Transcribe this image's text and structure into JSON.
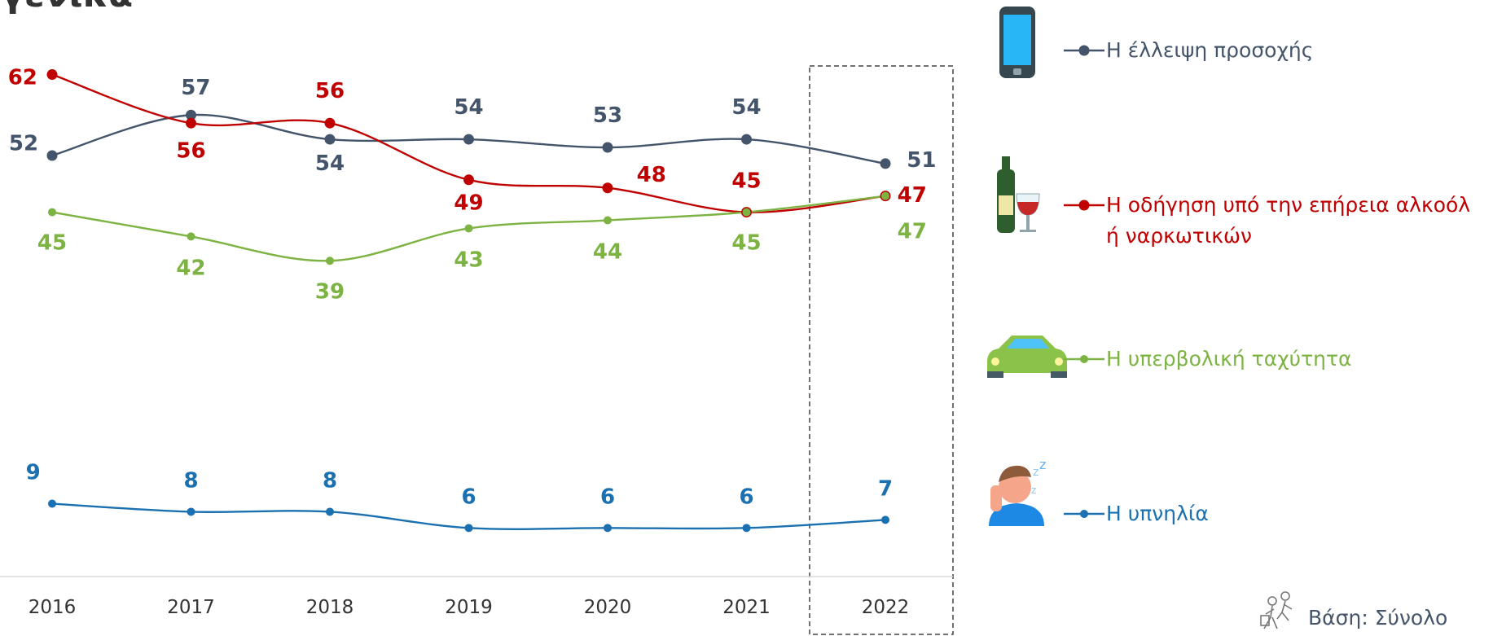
{
  "chart_data": {
    "type": "line",
    "title": "γενικά",
    "categories": [
      "2016",
      "2017",
      "2018",
      "2019",
      "2020",
      "2021",
      "2022"
    ],
    "ylim": [
      0,
      70
    ],
    "series": [
      {
        "name": "Η έλλειψη προσοχής",
        "color": "#44546a",
        "values": [
          52,
          57,
          54,
          54,
          53,
          54,
          51
        ]
      },
      {
        "name": "Η οδήγηση υπό την επήρεια αλκοόλ ή ναρκωτικών",
        "color": "#c00000",
        "values": [
          62,
          56,
          56,
          49,
          48,
          45,
          47
        ]
      },
      {
        "name": "Η υπερβολική ταχύτητα",
        "color": "#7cb342",
        "values": [
          45,
          42,
          39,
          43,
          44,
          45,
          47
        ]
      },
      {
        "name": "Η υπνηλία",
        "color": "#1a70b0",
        "values": [
          9,
          8,
          8,
          6,
          6,
          6,
          7
        ]
      }
    ],
    "footnote": "Βάση: Σύνολο"
  }
}
